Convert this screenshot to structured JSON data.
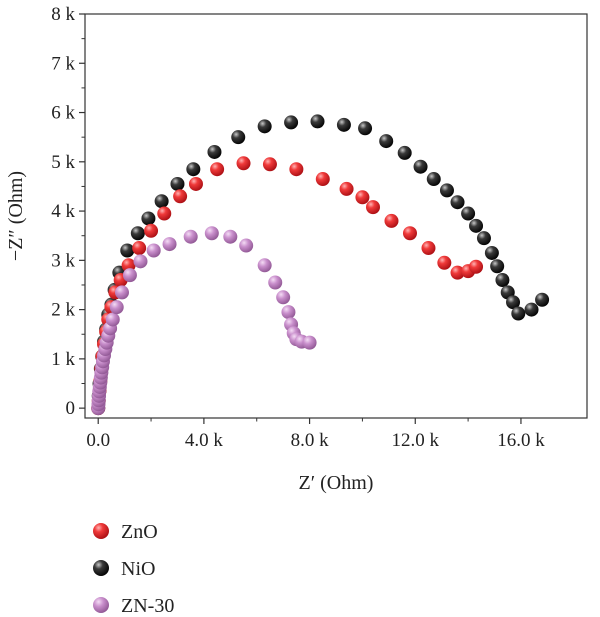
{
  "chart_data": {
    "type": "scatter",
    "title": "",
    "xlabel": "Z′ (Ohm)",
    "ylabel": "−Z″ (Ohm)",
    "xlim": [
      -0.5,
      18.5
    ],
    "ylim": [
      -0.2,
      8.0
    ],
    "x_unit": "k Ohm",
    "y_unit": "k Ohm",
    "x_ticks": [
      0,
      4,
      8,
      12,
      16
    ],
    "x_tick_labels": [
      "0.0",
      "4.0 k",
      "8.0 k",
      "12.0 k",
      "16.0 k"
    ],
    "y_ticks": [
      0,
      1,
      2,
      3,
      4,
      5,
      6,
      7,
      8
    ],
    "y_tick_labels": [
      "0",
      "1 k",
      "2 k",
      "3 k",
      "4 k",
      "5 k",
      "6 k",
      "7 k",
      "8 k"
    ],
    "grid": false,
    "legend_position": "bottom-left, outside plot",
    "series": [
      {
        "name": "ZnO",
        "color": "#e8232a",
        "points": [
          [
            0.0,
            0.0
          ],
          [
            0.02,
            0.15
          ],
          [
            0.05,
            0.35
          ],
          [
            0.08,
            0.55
          ],
          [
            0.12,
            0.8
          ],
          [
            0.16,
            1.05
          ],
          [
            0.22,
            1.3
          ],
          [
            0.3,
            1.55
          ],
          [
            0.38,
            1.8
          ],
          [
            0.5,
            2.05
          ],
          [
            0.65,
            2.35
          ],
          [
            0.85,
            2.6
          ],
          [
            1.15,
            2.9
          ],
          [
            1.55,
            3.25
          ],
          [
            2.0,
            3.6
          ],
          [
            2.5,
            3.95
          ],
          [
            3.1,
            4.3
          ],
          [
            3.7,
            4.55
          ],
          [
            4.5,
            4.85
          ],
          [
            5.5,
            4.97
          ],
          [
            6.5,
            4.95
          ],
          [
            7.5,
            4.85
          ],
          [
            8.5,
            4.65
          ],
          [
            9.4,
            4.45
          ],
          [
            10.0,
            4.28
          ],
          [
            10.4,
            4.08
          ],
          [
            11.1,
            3.8
          ],
          [
            11.8,
            3.55
          ],
          [
            12.5,
            3.25
          ],
          [
            13.1,
            2.95
          ],
          [
            13.6,
            2.75
          ],
          [
            14.0,
            2.78
          ],
          [
            14.3,
            2.87
          ]
        ]
      },
      {
        "name": "NiO",
        "color": "#111111",
        "points": [
          [
            0.0,
            0.0
          ],
          [
            0.02,
            0.25
          ],
          [
            0.05,
            0.5
          ],
          [
            0.1,
            0.8
          ],
          [
            0.15,
            1.05
          ],
          [
            0.22,
            1.35
          ],
          [
            0.3,
            1.6
          ],
          [
            0.38,
            1.9
          ],
          [
            0.5,
            2.1
          ],
          [
            0.62,
            2.4
          ],
          [
            0.8,
            2.75
          ],
          [
            1.1,
            3.2
          ],
          [
            1.5,
            3.55
          ],
          [
            1.9,
            3.85
          ],
          [
            2.4,
            4.2
          ],
          [
            3.0,
            4.55
          ],
          [
            3.6,
            4.85
          ],
          [
            4.4,
            5.2
          ],
          [
            5.3,
            5.5
          ],
          [
            6.3,
            5.72
          ],
          [
            7.3,
            5.8
          ],
          [
            8.3,
            5.82
          ],
          [
            9.3,
            5.75
          ],
          [
            10.1,
            5.68
          ],
          [
            10.9,
            5.42
          ],
          [
            11.6,
            5.18
          ],
          [
            12.2,
            4.9
          ],
          [
            12.7,
            4.65
          ],
          [
            13.2,
            4.42
          ],
          [
            13.6,
            4.18
          ],
          [
            14.0,
            3.95
          ],
          [
            14.3,
            3.7
          ],
          [
            14.6,
            3.45
          ],
          [
            14.9,
            3.15
          ],
          [
            15.1,
            2.88
          ],
          [
            15.3,
            2.6
          ],
          [
            15.5,
            2.35
          ],
          [
            15.7,
            2.15
          ],
          [
            15.9,
            1.92
          ],
          [
            16.4,
            2.0
          ],
          [
            16.8,
            2.2
          ]
        ]
      },
      {
        "name": "ZN-30",
        "color": "#c085c4",
        "points": [
          [
            0.0,
            0.0
          ],
          [
            0.01,
            0.08
          ],
          [
            0.02,
            0.16
          ],
          [
            0.03,
            0.25
          ],
          [
            0.04,
            0.34
          ],
          [
            0.06,
            0.43
          ],
          [
            0.08,
            0.52
          ],
          [
            0.1,
            0.62
          ],
          [
            0.12,
            0.72
          ],
          [
            0.15,
            0.83
          ],
          [
            0.18,
            0.95
          ],
          [
            0.22,
            1.07
          ],
          [
            0.27,
            1.2
          ],
          [
            0.32,
            1.33
          ],
          [
            0.38,
            1.47
          ],
          [
            0.45,
            1.62
          ],
          [
            0.55,
            1.8
          ],
          [
            0.7,
            2.05
          ],
          [
            0.9,
            2.35
          ],
          [
            1.2,
            2.7
          ],
          [
            1.6,
            2.98
          ],
          [
            2.1,
            3.2
          ],
          [
            2.7,
            3.33
          ],
          [
            3.5,
            3.48
          ],
          [
            4.3,
            3.55
          ],
          [
            5.0,
            3.48
          ],
          [
            5.6,
            3.3
          ],
          [
            6.3,
            2.9
          ],
          [
            6.7,
            2.55
          ],
          [
            7.0,
            2.25
          ],
          [
            7.2,
            1.95
          ],
          [
            7.3,
            1.7
          ],
          [
            7.4,
            1.52
          ],
          [
            7.5,
            1.4
          ],
          [
            7.7,
            1.35
          ],
          [
            8.0,
            1.33
          ]
        ]
      }
    ]
  }
}
